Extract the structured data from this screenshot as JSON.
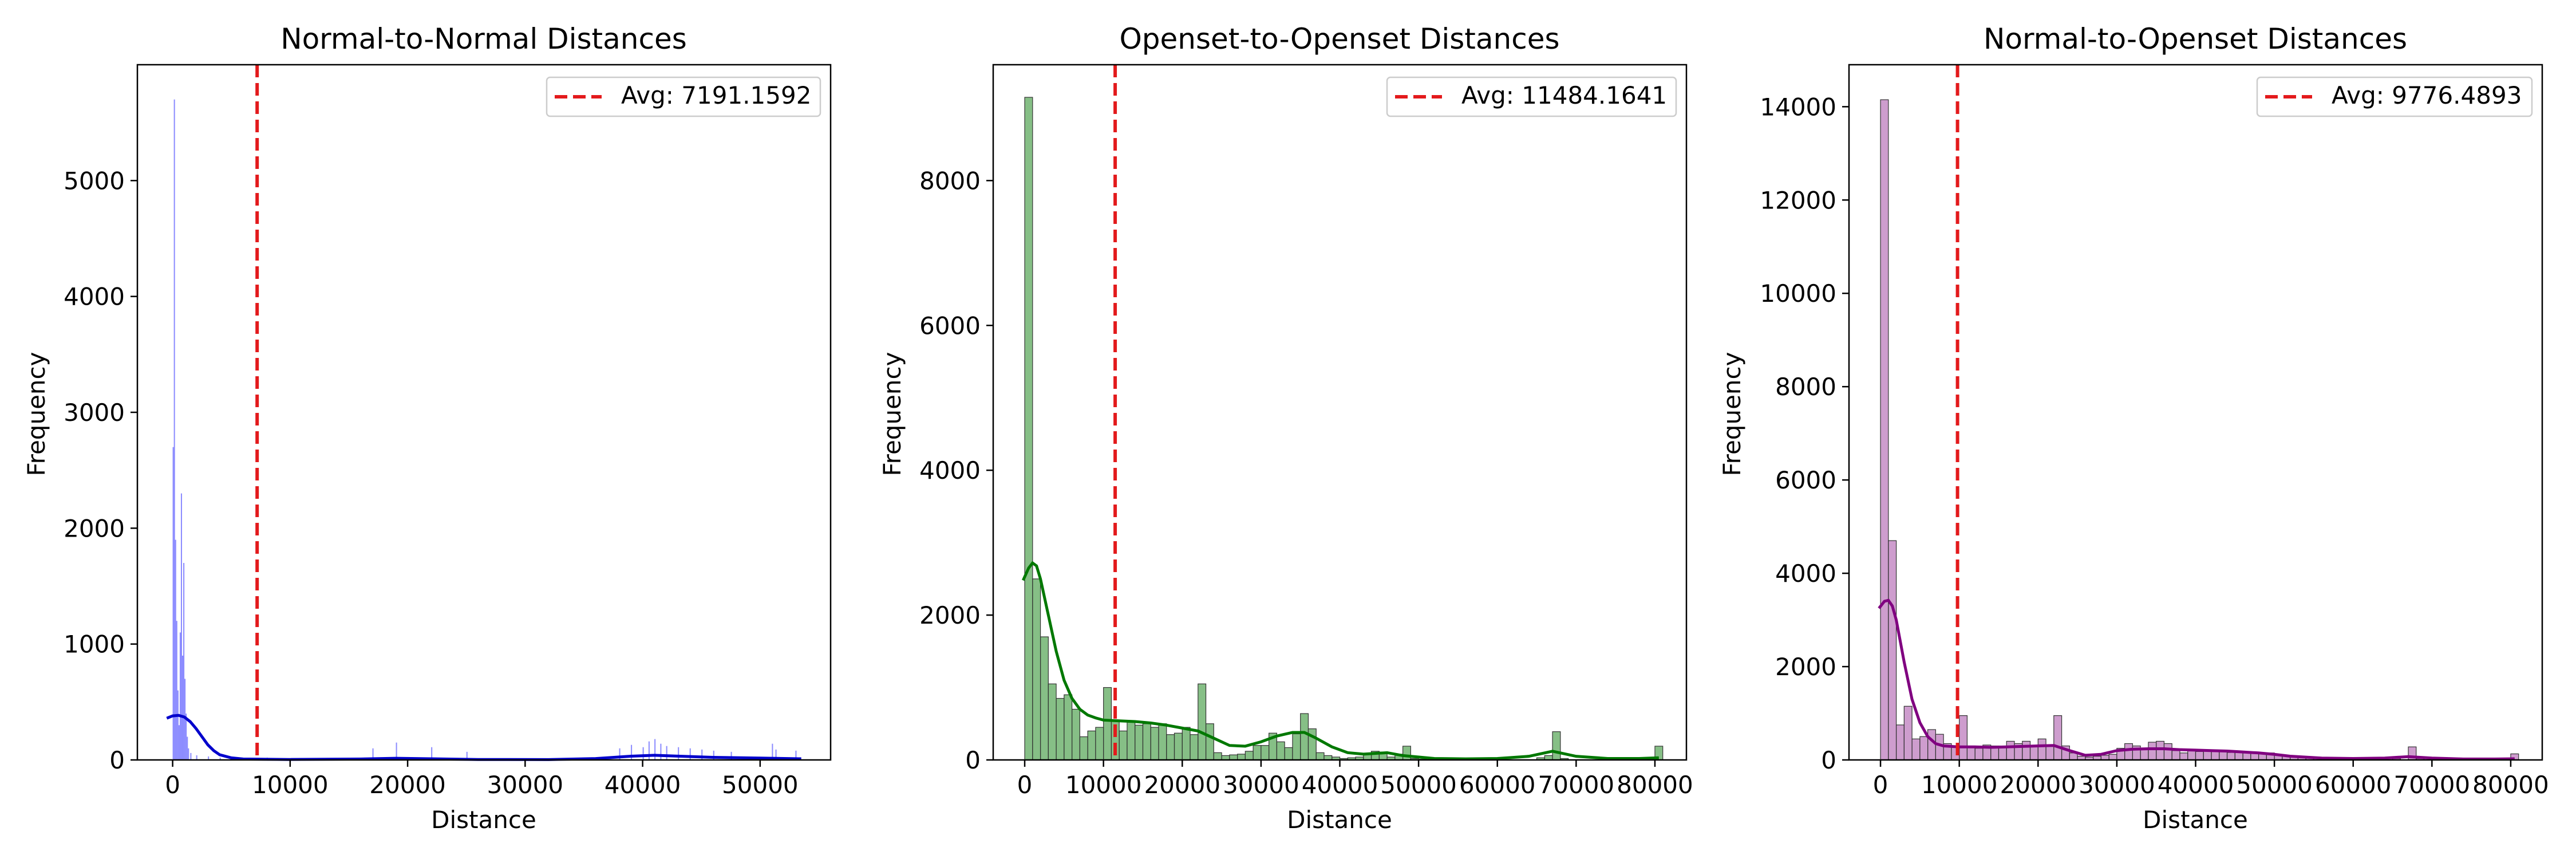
{
  "chart_data": [
    {
      "type": "histogram",
      "title": "Normal-to-Normal Distances",
      "xlabel": "Distance",
      "ylabel": "Frequency",
      "xlim": [
        -3000,
        56000
      ],
      "ylim": [
        0,
        6000
      ],
      "xticks": [
        0,
        10000,
        20000,
        30000,
        40000,
        50000
      ],
      "yticks": [
        0,
        1000,
        2000,
        3000,
        4000,
        5000
      ],
      "color": "#0000ff",
      "kde_color": "#0000cc",
      "avg_label": "Avg: 7191.1592",
      "avg_value": 7191.1592,
      "avg_color": "#e31a1c",
      "legend_position": "upper right",
      "bin_width": 100,
      "bars": [
        [
          0,
          2700
        ],
        [
          100,
          5700
        ],
        [
          200,
          1900
        ],
        [
          300,
          1200
        ],
        [
          400,
          600
        ],
        [
          500,
          300
        ],
        [
          600,
          1100
        ],
        [
          700,
          2300
        ],
        [
          800,
          900
        ],
        [
          900,
          1700
        ],
        [
          1000,
          700
        ],
        [
          1100,
          400
        ],
        [
          1200,
          200
        ],
        [
          1300,
          100
        ],
        [
          1500,
          60
        ],
        [
          2000,
          40
        ],
        [
          3000,
          30
        ],
        [
          4000,
          20
        ],
        [
          8000,
          20
        ],
        [
          17000,
          100
        ],
        [
          19000,
          150
        ],
        [
          22000,
          110
        ],
        [
          25000,
          70
        ],
        [
          38000,
          100
        ],
        [
          39000,
          130
        ],
        [
          40000,
          110
        ],
        [
          40500,
          160
        ],
        [
          41000,
          180
        ],
        [
          41500,
          140
        ],
        [
          42000,
          120
        ],
        [
          43000,
          110
        ],
        [
          44000,
          100
        ],
        [
          45000,
          90
        ],
        [
          46000,
          80
        ],
        [
          47500,
          70
        ],
        [
          51000,
          140
        ],
        [
          51300,
          90
        ],
        [
          53000,
          80
        ]
      ],
      "kde": [
        [
          -500,
          360
        ],
        [
          0,
          380
        ],
        [
          500,
          385
        ],
        [
          1000,
          370
        ],
        [
          1500,
          330
        ],
        [
          2000,
          270
        ],
        [
          2500,
          200
        ],
        [
          3000,
          130
        ],
        [
          3500,
          80
        ],
        [
          4000,
          45
        ],
        [
          5000,
          18
        ],
        [
          6000,
          8
        ],
        [
          10000,
          4
        ],
        [
          16000,
          8
        ],
        [
          19000,
          14
        ],
        [
          22000,
          10
        ],
        [
          26000,
          4
        ],
        [
          32000,
          3
        ],
        [
          36000,
          12
        ],
        [
          39000,
          32
        ],
        [
          41000,
          40
        ],
        [
          43000,
          33
        ],
        [
          46000,
          22
        ],
        [
          50000,
          16
        ],
        [
          53500,
          10
        ]
      ]
    },
    {
      "type": "histogram",
      "title": "Openset-to-Openset Distances",
      "xlabel": "Distance",
      "ylabel": "Frequency",
      "xlim": [
        -4000,
        84000
      ],
      "ylim": [
        0,
        9600
      ],
      "xticks": [
        0,
        10000,
        20000,
        30000,
        40000,
        50000,
        60000,
        70000,
        80000
      ],
      "yticks": [
        0,
        2000,
        4000,
        6000,
        8000
      ],
      "color": "#228b22",
      "kde_color": "#007800",
      "avg_label": "Avg: 11484.1641",
      "avg_value": 11484.1641,
      "avg_color": "#e31a1c",
      "legend_position": "upper right",
      "bin_width": 1000,
      "bars": [
        [
          0,
          9150
        ],
        [
          1000,
          2500
        ],
        [
          2000,
          1700
        ],
        [
          3000,
          1050
        ],
        [
          4000,
          850
        ],
        [
          5000,
          900
        ],
        [
          6000,
          700
        ],
        [
          7000,
          320
        ],
        [
          8000,
          400
        ],
        [
          9000,
          450
        ],
        [
          10000,
          1000
        ],
        [
          11000,
          550
        ],
        [
          12000,
          400
        ],
        [
          13000,
          520
        ],
        [
          14000,
          480
        ],
        [
          15000,
          500
        ],
        [
          16000,
          450
        ],
        [
          17000,
          500
        ],
        [
          18000,
          350
        ],
        [
          19000,
          370
        ],
        [
          20000,
          450
        ],
        [
          21000,
          350
        ],
        [
          22000,
          1050
        ],
        [
          23000,
          500
        ],
        [
          24000,
          100
        ],
        [
          25000,
          60
        ],
        [
          26000,
          70
        ],
        [
          27000,
          80
        ],
        [
          28000,
          120
        ],
        [
          29000,
          200
        ],
        [
          30000,
          200
        ],
        [
          31000,
          370
        ],
        [
          32000,
          250
        ],
        [
          33000,
          170
        ],
        [
          34000,
          360
        ],
        [
          35000,
          640
        ],
        [
          36000,
          430
        ],
        [
          37000,
          100
        ],
        [
          38000,
          60
        ],
        [
          39000,
          40
        ],
        [
          40000,
          20
        ],
        [
          41000,
          30
        ],
        [
          42000,
          40
        ],
        [
          43000,
          80
        ],
        [
          44000,
          120
        ],
        [
          45000,
          110
        ],
        [
          46000,
          40
        ],
        [
          47000,
          80
        ],
        [
          48000,
          190
        ],
        [
          49000,
          20
        ],
        [
          50000,
          10
        ],
        [
          55000,
          10
        ],
        [
          60000,
          10
        ],
        [
          65000,
          30
        ],
        [
          66000,
          60
        ],
        [
          67000,
          390
        ],
        [
          68000,
          20
        ],
        [
          80000,
          190
        ]
      ],
      "kde": [
        [
          -200,
          2480
        ],
        [
          500,
          2650
        ],
        [
          1000,
          2720
        ],
        [
          1500,
          2680
        ],
        [
          2000,
          2500
        ],
        [
          3000,
          2000
        ],
        [
          4000,
          1500
        ],
        [
          5000,
          1100
        ],
        [
          6000,
          850
        ],
        [
          7000,
          700
        ],
        [
          8000,
          620
        ],
        [
          9000,
          580
        ],
        [
          10000,
          550
        ],
        [
          12000,
          540
        ],
        [
          14000,
          530
        ],
        [
          16000,
          510
        ],
        [
          18000,
          480
        ],
        [
          20000,
          440
        ],
        [
          22000,
          400
        ],
        [
          24000,
          300
        ],
        [
          26000,
          200
        ],
        [
          28000,
          190
        ],
        [
          30000,
          250
        ],
        [
          32000,
          330
        ],
        [
          34000,
          380
        ],
        [
          35500,
          380
        ],
        [
          37000,
          300
        ],
        [
          39000,
          180
        ],
        [
          41000,
          100
        ],
        [
          43000,
          80
        ],
        [
          46000,
          100
        ],
        [
          48000,
          60
        ],
        [
          52000,
          20
        ],
        [
          56000,
          15
        ],
        [
          60000,
          20
        ],
        [
          64000,
          50
        ],
        [
          67000,
          120
        ],
        [
          70000,
          50
        ],
        [
          74000,
          20
        ],
        [
          78000,
          20
        ],
        [
          80500,
          30
        ]
      ]
    },
    {
      "type": "histogram",
      "title": "Normal-to-Openset Distances",
      "xlabel": "Distance",
      "ylabel": "Frequency",
      "xlim": [
        -4000,
        84000
      ],
      "ylim": [
        0,
        14900
      ],
      "xticks": [
        0,
        10000,
        20000,
        30000,
        40000,
        50000,
        60000,
        70000,
        80000
      ],
      "yticks": [
        0,
        2000,
        4000,
        6000,
        8000,
        10000,
        12000,
        14000
      ],
      "color": "#a64ca6",
      "kde_color": "#800080",
      "avg_label": "Avg: 9776.4893",
      "avg_value": 9776.4893,
      "avg_color": "#e31a1c",
      "legend_position": "upper right",
      "bin_width": 1000,
      "bars": [
        [
          0,
          14150
        ],
        [
          1000,
          4700
        ],
        [
          2000,
          750
        ],
        [
          3000,
          1150
        ],
        [
          4000,
          450
        ],
        [
          5000,
          500
        ],
        [
          6000,
          650
        ],
        [
          7000,
          550
        ],
        [
          8000,
          350
        ],
        [
          9000,
          280
        ],
        [
          10000,
          950
        ],
        [
          11000,
          300
        ],
        [
          12000,
          250
        ],
        [
          13000,
          320
        ],
        [
          14000,
          300
        ],
        [
          15000,
          300
        ],
        [
          16000,
          400
        ],
        [
          17000,
          350
        ],
        [
          18000,
          400
        ],
        [
          19000,
          280
        ],
        [
          20000,
          450
        ],
        [
          21000,
          300
        ],
        [
          22000,
          950
        ],
        [
          23000,
          300
        ],
        [
          24000,
          150
        ],
        [
          25000,
          80
        ],
        [
          26000,
          60
        ],
        [
          27000,
          80
        ],
        [
          28000,
          100
        ],
        [
          29000,
          120
        ],
        [
          30000,
          250
        ],
        [
          31000,
          350
        ],
        [
          32000,
          300
        ],
        [
          33000,
          250
        ],
        [
          34000,
          380
        ],
        [
          35000,
          400
        ],
        [
          36000,
          350
        ],
        [
          37000,
          200
        ],
        [
          38000,
          150
        ],
        [
          39000,
          200
        ],
        [
          40000,
          180
        ],
        [
          41000,
          220
        ],
        [
          42000,
          200
        ],
        [
          43000,
          180
        ],
        [
          44000,
          160
        ],
        [
          45000,
          170
        ],
        [
          46000,
          150
        ],
        [
          47000,
          140
        ],
        [
          48000,
          130
        ],
        [
          49000,
          150
        ],
        [
          50000,
          120
        ],
        [
          51000,
          100
        ],
        [
          52000,
          80
        ],
        [
          53000,
          60
        ],
        [
          54000,
          40
        ],
        [
          56000,
          30
        ],
        [
          60000,
          20
        ],
        [
          65000,
          30
        ],
        [
          67000,
          280
        ],
        [
          68000,
          30
        ],
        [
          80000,
          130
        ]
      ],
      "kde": [
        [
          -200,
          3250
        ],
        [
          500,
          3400
        ],
        [
          1000,
          3420
        ],
        [
          1500,
          3300
        ],
        [
          2000,
          3000
        ],
        [
          3000,
          2100
        ],
        [
          4000,
          1300
        ],
        [
          5000,
          800
        ],
        [
          6000,
          500
        ],
        [
          7000,
          350
        ],
        [
          8000,
          300
        ],
        [
          10000,
          280
        ],
        [
          12000,
          280
        ],
        [
          14000,
          270
        ],
        [
          16000,
          280
        ],
        [
          18000,
          290
        ],
        [
          20000,
          300
        ],
        [
          22000,
          310
        ],
        [
          24000,
          200
        ],
        [
          26000,
          100
        ],
        [
          28000,
          120
        ],
        [
          30000,
          200
        ],
        [
          32000,
          230
        ],
        [
          34000,
          240
        ],
        [
          36000,
          240
        ],
        [
          38000,
          220
        ],
        [
          40000,
          210
        ],
        [
          42000,
          200
        ],
        [
          44000,
          190
        ],
        [
          46000,
          170
        ],
        [
          48000,
          150
        ],
        [
          50000,
          120
        ],
        [
          52000,
          80
        ],
        [
          56000,
          40
        ],
        [
          60000,
          30
        ],
        [
          64000,
          40
        ],
        [
          67000,
          70
        ],
        [
          70000,
          40
        ],
        [
          74000,
          20
        ],
        [
          78000,
          20
        ],
        [
          80500,
          25
        ]
      ]
    }
  ]
}
